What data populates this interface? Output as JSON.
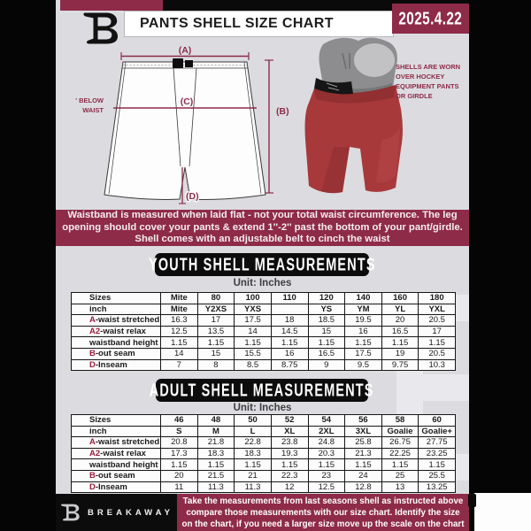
{
  "colors": {
    "maroon": "#8e2b49",
    "accent_red": "#9e1c3d",
    "flyer_bg": "#dcdce0",
    "black": "#0a0a0a"
  },
  "header": {
    "title": "PANTS SHELL SIZE CHART",
    "date": "2025.4.22",
    "logo": "breakaway-b-monogram"
  },
  "diagram": {
    "label_a": "(A)",
    "label_b": "(B)",
    "label_c": "(C)",
    "label_d": "(D)",
    "waist_note_line1": "7'' BELOW",
    "waist_note_line2": "WAIST"
  },
  "photo": {
    "note_lines": [
      "SHELLS ARE WORN",
      "OVER HOCKEY",
      "EQUIPMENT PANTS",
      "OR GIRDLE"
    ]
  },
  "banner": {
    "lines": [
      "Waistband is measured when laid flat - not your total waist circumference. The leg",
      "opening should cover your pants & extend 1''-2'' past the bottom of your pant/girdle.",
      "Shell comes with an adjustable belt to cinch the waist"
    ]
  },
  "youth": {
    "heading": "YOUTH SHELL MEASUREMENTS",
    "unit": "Unit: Inches",
    "rows": [
      {
        "label": "Sizes",
        "accent": "",
        "header": true,
        "values": [
          "Mite",
          "80",
          "100",
          "110",
          "120",
          "140",
          "160",
          "180"
        ]
      },
      {
        "label": "inch",
        "accent": "",
        "header": true,
        "values": [
          "Mite",
          "Y2XS",
          "YXS",
          "",
          "YS",
          "YM",
          "YL",
          "YXL"
        ]
      },
      {
        "label": "-waist stretched",
        "accent": "A",
        "values": [
          "16.3",
          "17",
          "17.5",
          "18",
          "18.5",
          "19.5",
          "20",
          "20.5"
        ]
      },
      {
        "label": "-waist relax",
        "accent": "A2",
        "values": [
          "12.5",
          "13.5",
          "14",
          "14.5",
          "15",
          "16",
          "16.5",
          "17"
        ]
      },
      {
        "label": "waistband height",
        "accent": "",
        "values": [
          "1.15",
          "1.15",
          "1.15",
          "1.15",
          "1.15",
          "1.15",
          "1.15",
          "1.15"
        ]
      },
      {
        "label": "-out seam",
        "accent": "B",
        "values": [
          "14",
          "15",
          "15.5",
          "16",
          "16.5",
          "17.5",
          "19",
          "20.5"
        ]
      },
      {
        "label": "-Inseam",
        "accent": "D",
        "values": [
          "7",
          "8",
          "8.5",
          "8.75",
          "9",
          "9.5",
          "9.75",
          "10.3"
        ]
      }
    ]
  },
  "adult": {
    "heading": "ADULT SHELL MEASUREMENTS",
    "unit": "Unit: Inches",
    "rows": [
      {
        "label": "Sizes",
        "accent": "",
        "header": true,
        "values": [
          "46",
          "48",
          "50",
          "52",
          "54",
          "56",
          "58",
          "60"
        ]
      },
      {
        "label": "inch",
        "accent": "",
        "header": true,
        "values": [
          "S",
          "M",
          "L",
          "XL",
          "2XL",
          "3XL",
          "Goalie",
          "Goalie+"
        ]
      },
      {
        "label": "-waist stretched",
        "accent": "A",
        "values": [
          "20.8",
          "21.8",
          "22.8",
          "23.8",
          "24.8",
          "25.8",
          "26.75",
          "27.75"
        ]
      },
      {
        "label": "-waist relax",
        "accent": "A2",
        "values": [
          "17.3",
          "18.3",
          "18.3",
          "19.3",
          "20.3",
          "21.3",
          "22.25",
          "23.25"
        ]
      },
      {
        "label": "waistband height",
        "accent": "",
        "values": [
          "1.15",
          "1.15",
          "1.15",
          "1.15",
          "1.15",
          "1.15",
          "1.15",
          "1.15"
        ]
      },
      {
        "label": "-out seam",
        "accent": "B",
        "values": [
          "20",
          "21.5",
          "21",
          "22.3",
          "23",
          "24",
          "25",
          "25.5"
        ]
      },
      {
        "label": "-Inseam",
        "accent": "D",
        "values": [
          "11",
          "11.3",
          "11.3",
          "12",
          "12.5",
          "12.8",
          "13",
          "13.25"
        ]
      }
    ]
  },
  "footer": {
    "brand": "BREAKAWAY",
    "note_lines": [
      "Take the measurements from last seasons shell as instructed above",
      "compare those measurements  with our size chart. Identify the size",
      "on the chart, if you need a larger size move up the scale on the chart"
    ]
  }
}
